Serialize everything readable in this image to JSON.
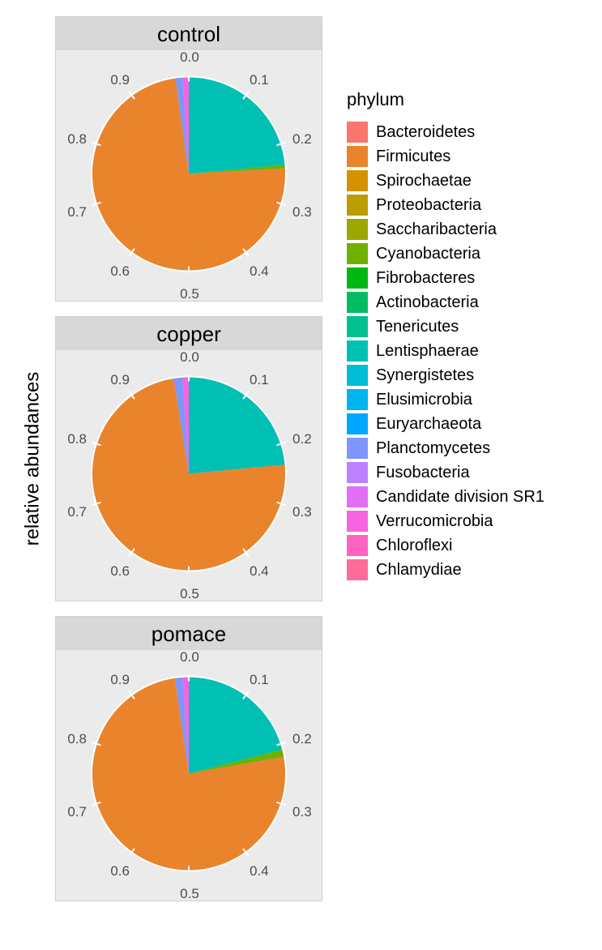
{
  "axis_label": "relative abundances",
  "tick_values": [
    "0.0",
    "0.1",
    "0.2",
    "0.3",
    "0.4",
    "0.5",
    "0.6",
    "0.7",
    "0.8",
    "0.9"
  ],
  "background_color": "#ebebeb",
  "panel_title_bg": "#d8d8d8",
  "grid_color": "#ffffff",
  "tick_font_color": "#4d4d4d",
  "tick_font_size": 17,
  "title_font_size": 26,
  "axis_label_font_size": 24,
  "pie_radius": 120,
  "tick_label_radius": 146,
  "legend": {
    "title": "phylum",
    "items": [
      {
        "label": "Bacteroidetes",
        "color": "#f8766d"
      },
      {
        "label": "Firmicutes",
        "color": "#e9842c"
      },
      {
        "label": "Spirochaetae",
        "color": "#d69100"
      },
      {
        "label": "Proteobacteria",
        "color": "#bc9d00"
      },
      {
        "label": "Saccharibacteria",
        "color": "#9ca700"
      },
      {
        "label": "Cyanobacteria",
        "color": "#6fb000"
      },
      {
        "label": "Fibrobacteres",
        "color": "#00b813"
      },
      {
        "label": "Actinobacteria",
        "color": "#00bd61"
      },
      {
        "label": "Tenericutes",
        "color": "#00c08e"
      },
      {
        "label": "Lentisphaerae",
        "color": "#00c0b4"
      },
      {
        "label": "Synergistetes",
        "color": "#00bdd4"
      },
      {
        "label": "Elusimicrobia",
        "color": "#00b5ee"
      },
      {
        "label": "Euryarchaeota",
        "color": "#00a7ff"
      },
      {
        "label": "Planctomycetes",
        "color": "#7f96ff"
      },
      {
        "label": "Fusobacteria",
        "color": "#bc81ff"
      },
      {
        "label": "Candidate division SR1",
        "color": "#e26ef7"
      },
      {
        "label": "Verrucomicrobia",
        "color": "#f863df"
      },
      {
        "label": "Chloroflexi",
        "color": "#ff62bf"
      },
      {
        "label": "Chlamydiae",
        "color": "#ff6b9a"
      }
    ]
  },
  "panels": [
    {
      "title": "control",
      "slices": [
        {
          "phylum": "Lentisphaerae",
          "value": 0.235,
          "color": "#00c0b4"
        },
        {
          "phylum": "Cyanobacteria",
          "value": 0.006,
          "color": "#6fb000"
        },
        {
          "phylum": "Firmicutes",
          "value": 0.737,
          "color": "#e9842c"
        },
        {
          "phylum": "Planctomycetes",
          "value": 0.012,
          "color": "#7f96ff"
        },
        {
          "phylum": "Verrucomicrobia",
          "value": 0.01,
          "color": "#f863df"
        }
      ]
    },
    {
      "title": "copper",
      "slices": [
        {
          "phylum": "Lentisphaerae",
          "value": 0.235,
          "color": "#00c0b4"
        },
        {
          "phylum": "Firmicutes",
          "value": 0.74,
          "color": "#e9842c"
        },
        {
          "phylum": "Planctomycetes",
          "value": 0.015,
          "color": "#7f96ff"
        },
        {
          "phylum": "Verrucomicrobia",
          "value": 0.01,
          "color": "#f863df"
        }
      ]
    },
    {
      "title": "pomace",
      "slices": [
        {
          "phylum": "Lentisphaerae",
          "value": 0.21,
          "color": "#00c0b4"
        },
        {
          "phylum": "Cyanobacteria",
          "value": 0.012,
          "color": "#6fb000"
        },
        {
          "phylum": "Firmicutes",
          "value": 0.755,
          "color": "#e9842c"
        },
        {
          "phylum": "Planctomycetes",
          "value": 0.013,
          "color": "#7f96ff"
        },
        {
          "phylum": "Verrucomicrobia",
          "value": 0.01,
          "color": "#f863df"
        }
      ]
    }
  ]
}
